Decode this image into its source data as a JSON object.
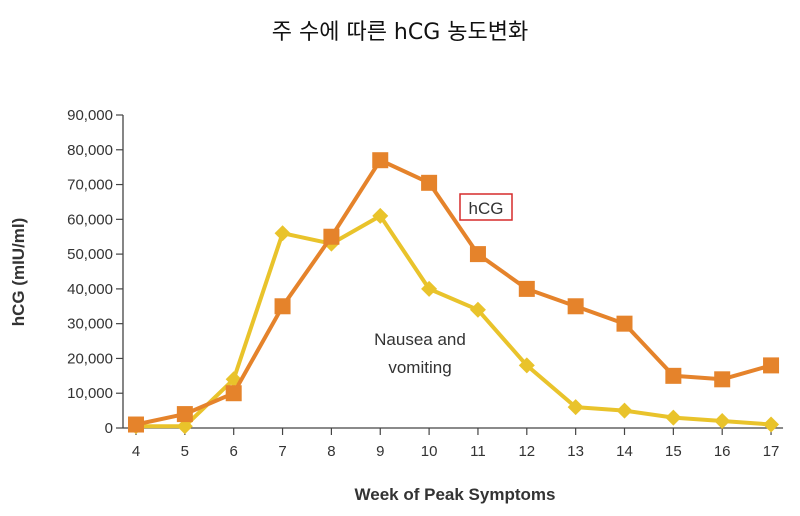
{
  "chart_data": {
    "type": "line",
    "title": "주 수에 따른 hCG 농도변화",
    "xlabel": "Week of Peak Symptoms",
    "ylabel": "hCG (mIU/ml)",
    "x": [
      4,
      5,
      6,
      7,
      8,
      9,
      10,
      11,
      12,
      13,
      14,
      15,
      16,
      17
    ],
    "ylim": [
      0,
      90000
    ],
    "yticks": [
      "0",
      "10,000",
      "20,000",
      "30,000",
      "40,000",
      "50,000",
      "60,000",
      "70,000",
      "80,000",
      "90,000"
    ],
    "grid": false,
    "series": [
      {
        "name": "hCG",
        "marker": "square",
        "color": "#E5832B",
        "values": [
          1000,
          4000,
          10000,
          35000,
          55000,
          77000,
          70500,
          50000,
          40000,
          35000,
          30000,
          15000,
          14000,
          18000
        ]
      },
      {
        "name": "Nausea and vomiting",
        "marker": "diamond",
        "color": "#E9C32B",
        "values": [
          500,
          500,
          14000,
          56000,
          53000,
          61000,
          40000,
          34000,
          18000,
          6000,
          5000,
          3000,
          2000,
          1000
        ]
      }
    ],
    "annotations": {
      "hcg_label": "hCG",
      "nausea_line1": "Nausea and",
      "nausea_line2": "vomiting",
      "hcg_box_color": "#D62B2B"
    }
  }
}
